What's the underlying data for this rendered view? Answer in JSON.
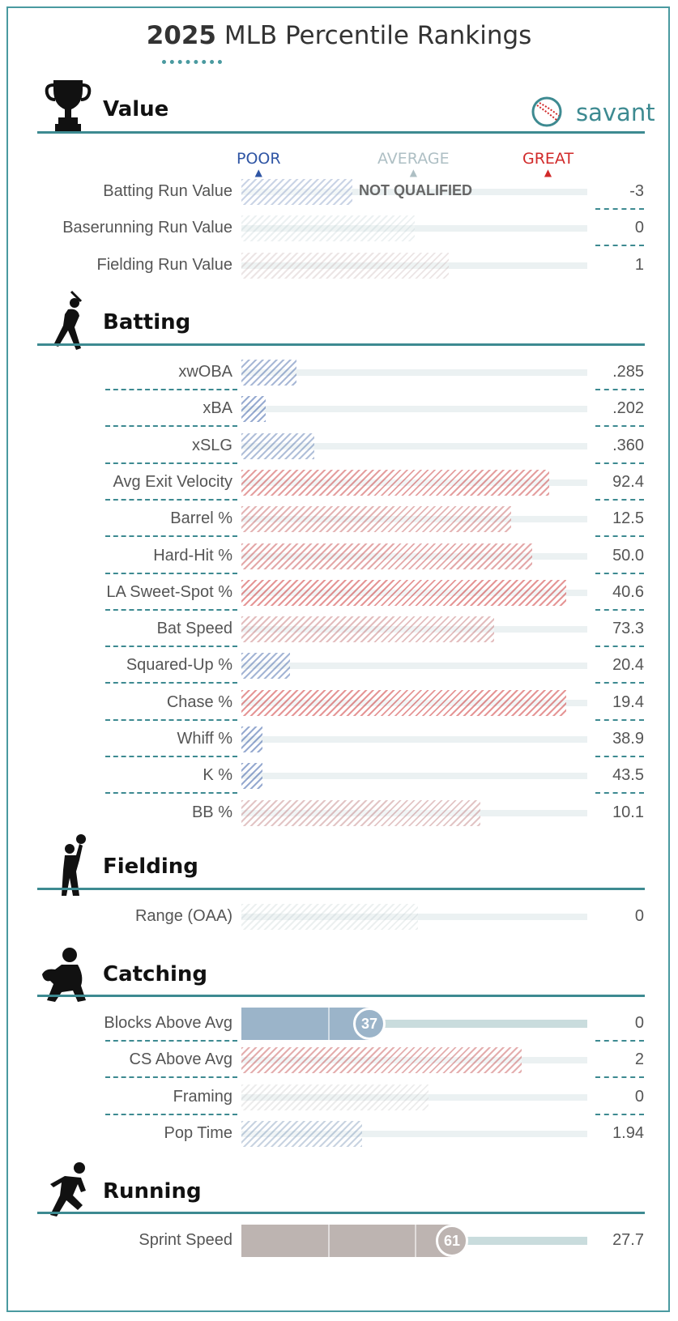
{
  "header": {
    "year": "2025",
    "title_rest": " MLB Percentile Rankings",
    "brand": "savant"
  },
  "legend": {
    "poor": "POOR",
    "average": "AVERAGE",
    "great": "GREAT"
  },
  "colors": {
    "accent": "#3d8a91",
    "poor": "#2f55a4",
    "average": "#aebfc4",
    "great": "#d12a2a",
    "blocks_bar": "#9bb4c9",
    "sprint_bar": "#bdb4b1"
  },
  "chart_data": {
    "type": "bar",
    "scale": "percentile",
    "xlim": [
      0,
      100
    ],
    "sections": [
      {
        "name": "Value",
        "icon": "trophy-icon",
        "rows": [
          {
            "label": "Batting Run Value",
            "value": "-3",
            "percentile": 32,
            "qualified": false,
            "note": "NOT QUALIFIED"
          },
          {
            "label": "Baserunning Run Value",
            "value": "0",
            "percentile": 50
          },
          {
            "label": "Fielding Run Value",
            "value": "1",
            "percentile": 60
          }
        ]
      },
      {
        "name": "Batting",
        "icon": "batter-icon",
        "rows": [
          {
            "label": "xwOBA",
            "value": ".285",
            "percentile": 16
          },
          {
            "label": "xBA",
            "value": ".202",
            "percentile": 7
          },
          {
            "label": "xSLG",
            "value": ".360",
            "percentile": 21
          },
          {
            "label": "Avg Exit Velocity",
            "value": "92.4",
            "percentile": 89
          },
          {
            "label": "Barrel %",
            "value": "12.5",
            "percentile": 78
          },
          {
            "label": "Hard-Hit %",
            "value": "50.0",
            "percentile": 84
          },
          {
            "label": "LA Sweet-Spot %",
            "value": "40.6",
            "percentile": 94
          },
          {
            "label": "Bat Speed",
            "value": "73.3",
            "percentile": 73
          },
          {
            "label": "Squared-Up %",
            "value": "20.4",
            "percentile": 14
          },
          {
            "label": "Chase %",
            "value": "19.4",
            "percentile": 94
          },
          {
            "label": "Whiff %",
            "value": "38.9",
            "percentile": 6
          },
          {
            "label": "K %",
            "value": "43.5",
            "percentile": 6
          },
          {
            "label": "BB %",
            "value": "10.1",
            "percentile": 69
          }
        ]
      },
      {
        "name": "Fielding",
        "icon": "fielder-icon",
        "rows": [
          {
            "label": "Range (OAA)",
            "value": "0",
            "percentile": 51
          }
        ]
      },
      {
        "name": "Catching",
        "icon": "catcher-icon",
        "rows": [
          {
            "label": "Blocks Above Avg",
            "value": "0",
            "percentile": 37,
            "highlight": true,
            "badge": "37"
          },
          {
            "label": "CS Above Avg",
            "value": "2",
            "percentile": 81
          },
          {
            "label": "Framing",
            "value": "0",
            "percentile": 54
          },
          {
            "label": "Pop Time",
            "value": "1.94",
            "percentile": 35
          }
        ]
      },
      {
        "name": "Running",
        "icon": "runner-icon",
        "rows": [
          {
            "label": "Sprint Speed",
            "value": "27.7",
            "percentile": 61,
            "highlight": true,
            "badge": "61"
          }
        ]
      }
    ]
  }
}
